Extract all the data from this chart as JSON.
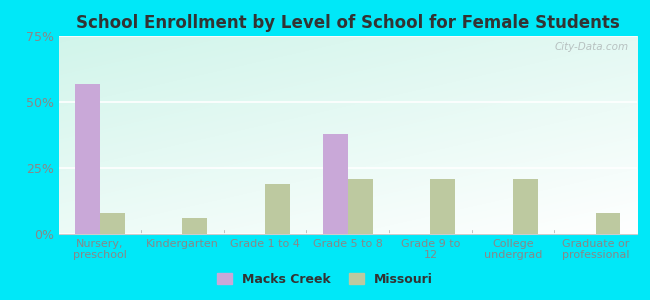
{
  "title": "School Enrollment by Level of School for Female Students",
  "categories": [
    "Nursery,\npreschool",
    "Kindergarten",
    "Grade 1 to 4",
    "Grade 5 to 8",
    "Grade 9 to\n12",
    "College\nundergrad",
    "Graduate or\nprofessional"
  ],
  "macks_creek": [
    57,
    0,
    0,
    38,
    0,
    0,
    0
  ],
  "missouri": [
    8,
    6,
    19,
    21,
    21,
    21,
    8
  ],
  "macks_creek_color": "#c9a8d8",
  "missouri_color": "#bdc9a0",
  "ylim": [
    0,
    75
  ],
  "yticks": [
    0,
    25,
    50,
    75
  ],
  "ytick_labels": [
    "0%",
    "25%",
    "50%",
    "75%"
  ],
  "background_outer": "#00e8f8",
  "background_inner_tl": "#f2fbf0",
  "background_inner_tr": "#c8ece8",
  "background_inner_bl": "#ffffff",
  "background_inner_br": "#e0f5ee",
  "grid_color": "#e0ede0",
  "bar_width": 0.3,
  "legend_labels": [
    "Macks Creek",
    "Missouri"
  ],
  "watermark": "City-Data.com",
  "title_fontsize": 12,
  "tick_fontsize": 8,
  "ytick_fontsize": 9
}
